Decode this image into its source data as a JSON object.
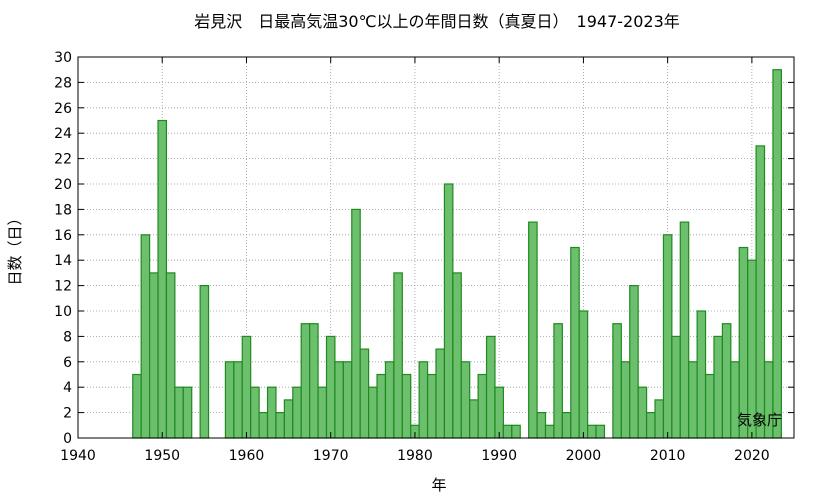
{
  "chart_data": {
    "type": "bar",
    "title": "岩見沢　日最高気温30℃以上の年間日数（真夏日）　1947-2023年",
    "xlabel": "年",
    "ylabel": "日数（日）",
    "xlim": [
      1940,
      2025
    ],
    "ylim": [
      0,
      30
    ],
    "x_ticks": [
      "1940",
      "1950",
      "1960",
      "1970",
      "1980",
      "1990",
      "2000",
      "2010",
      "2020"
    ],
    "y_ticks": [
      "0",
      "2",
      "4",
      "6",
      "8",
      "10",
      "12",
      "14",
      "16",
      "18",
      "20",
      "22",
      "24",
      "26",
      "28",
      "30"
    ],
    "grid": true,
    "bar_color": "#6cbf6c",
    "bar_edge_color": "#1f8a1f",
    "credit": "気象庁",
    "x": [
      1947,
      1948,
      1949,
      1950,
      1951,
      1952,
      1953,
      1954,
      1955,
      1956,
      1957,
      1958,
      1959,
      1960,
      1961,
      1962,
      1963,
      1964,
      1965,
      1966,
      1967,
      1968,
      1969,
      1970,
      1971,
      1972,
      1973,
      1974,
      1975,
      1976,
      1977,
      1978,
      1979,
      1980,
      1981,
      1982,
      1983,
      1984,
      1985,
      1986,
      1987,
      1988,
      1989,
      1990,
      1991,
      1992,
      1993,
      1994,
      1995,
      1996,
      1997,
      1998,
      1999,
      2000,
      2001,
      2002,
      2003,
      2004,
      2005,
      2006,
      2007,
      2008,
      2009,
      2010,
      2011,
      2012,
      2013,
      2014,
      2015,
      2016,
      2017,
      2018,
      2019,
      2020,
      2021,
      2022,
      2023
    ],
    "values": [
      5,
      16,
      13,
      25,
      13,
      4,
      4,
      0,
      12,
      0,
      0,
      6,
      6,
      8,
      4,
      2,
      4,
      2,
      3,
      4,
      9,
      9,
      4,
      8,
      6,
      6,
      18,
      7,
      4,
      5,
      6,
      13,
      5,
      1,
      6,
      5,
      7,
      20,
      13,
      6,
      3,
      5,
      8,
      4,
      1,
      1,
      0,
      17,
      2,
      1,
      9,
      2,
      15,
      10,
      1,
      1,
      0,
      9,
      6,
      12,
      4,
      2,
      3,
      16,
      8,
      17,
      6,
      10,
      5,
      8,
      9,
      6,
      15,
      14,
      23,
      6,
      29
    ]
  }
}
